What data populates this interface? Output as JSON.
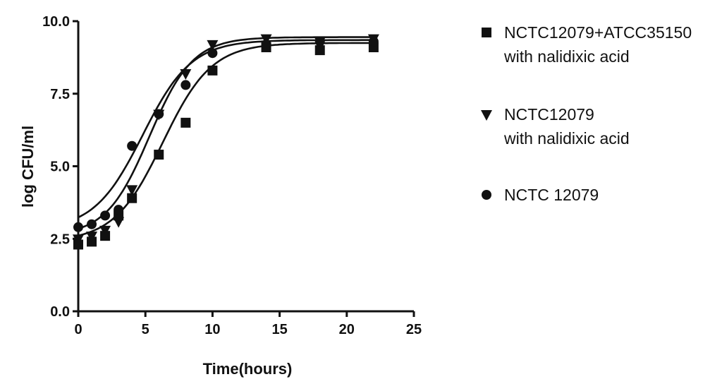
{
  "chart_data": {
    "type": "scatter",
    "xlabel": "Time(hours)",
    "ylabel": "log CFU/ml",
    "xlim": [
      0,
      25
    ],
    "ylim": [
      0,
      10
    ],
    "x_ticks": [
      "0",
      "5",
      "10",
      "15",
      "20",
      "25"
    ],
    "y_ticks": [
      "0.0",
      "2.5",
      "5.0",
      "7.5",
      "10.0"
    ],
    "grid": false,
    "legend_position": "right",
    "fitted_curves": true,
    "series": [
      {
        "name_lines": [
          "NCTC12079+ATCC35150",
          "with nalidixic acid"
        ],
        "marker": "square",
        "x": [
          0,
          1,
          2,
          3,
          4,
          6,
          8,
          10,
          14,
          18,
          22
        ],
        "y": [
          2.3,
          2.4,
          2.6,
          3.3,
          3.9,
          5.4,
          6.5,
          8.3,
          9.1,
          9.0,
          9.1
        ],
        "curve": {
          "bottom": 2.4,
          "top": 9.25,
          "midpoint": 6.3,
          "slope": 0.55
        }
      },
      {
        "name_lines": [
          "NCTC12079",
          "with nalidixic acid"
        ],
        "marker": "triangle-down",
        "x": [
          0,
          1,
          2,
          3,
          4,
          6,
          8,
          10,
          14,
          18,
          22
        ],
        "y": [
          2.5,
          2.6,
          2.8,
          3.1,
          4.2,
          6.8,
          8.2,
          9.2,
          9.4,
          9.3,
          9.4
        ],
        "curve": {
          "bottom": 2.6,
          "top": 9.45,
          "midpoint": 5.3,
          "slope": 0.62
        }
      },
      {
        "name_lines": [
          "NCTC 12079"
        ],
        "marker": "circle",
        "x": [
          0,
          1,
          2,
          3,
          4,
          6,
          8,
          10,
          14,
          18,
          22
        ],
        "y": [
          2.9,
          3.0,
          3.3,
          3.5,
          5.7,
          6.8,
          7.8,
          8.9,
          9.2,
          9.3,
          9.3
        ],
        "curve": {
          "bottom": 2.8,
          "top": 9.35,
          "midpoint": 4.8,
          "slope": 0.55
        }
      }
    ]
  }
}
